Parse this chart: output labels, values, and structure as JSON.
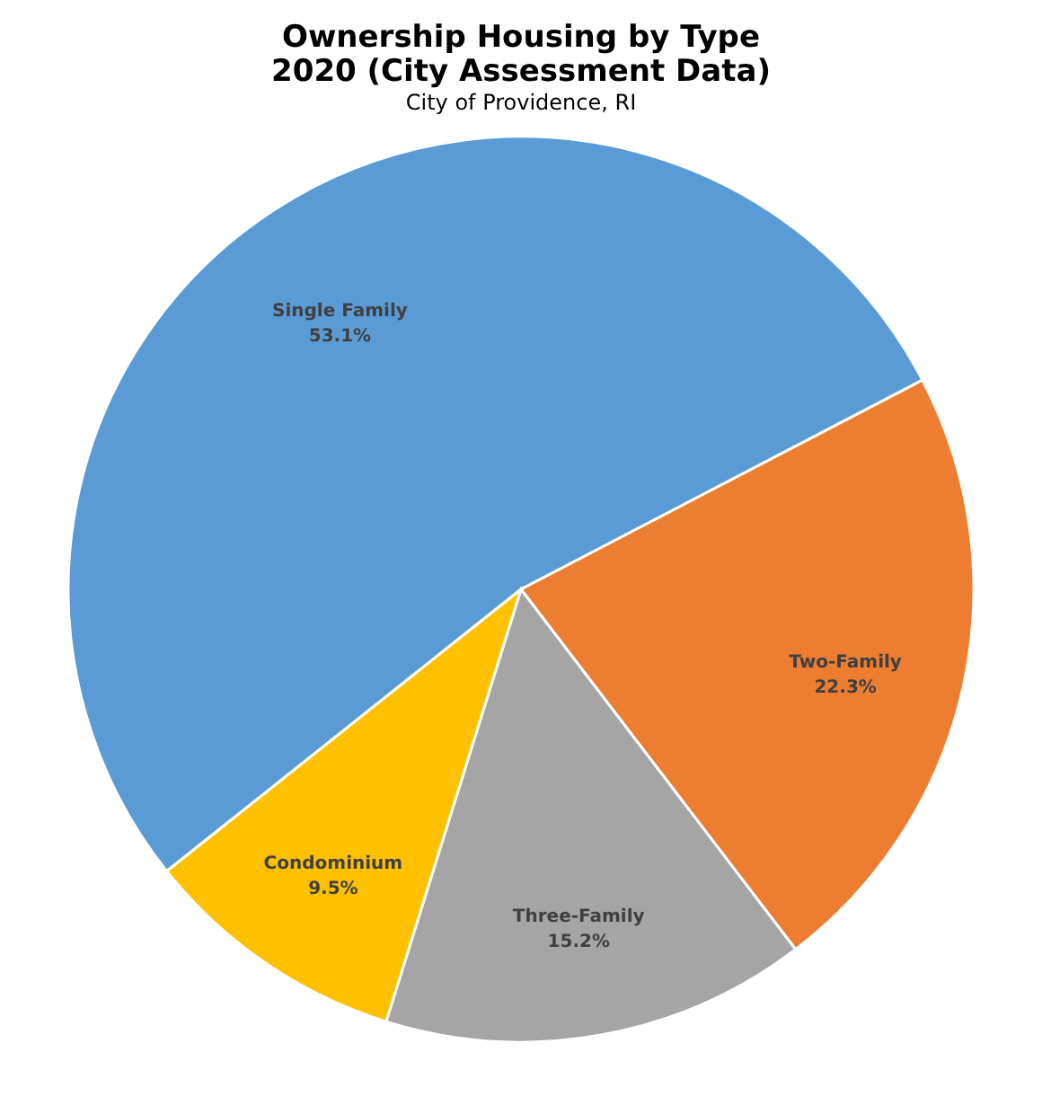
{
  "chart_data": {
    "type": "pie",
    "title": [
      "Ownership Housing by Type",
      "2020 (City Assessment Data)"
    ],
    "subtitle": "City of Providence, RI",
    "categories": [
      "Single Family",
      "Two-Family",
      "Three-Family",
      "Condominium"
    ],
    "values": [
      53.1,
      22.3,
      15.2,
      9.5
    ],
    "value_labels": [
      "53.1%",
      "22.3%",
      "15.2%",
      "9.5%"
    ],
    "colors": [
      "#5b9bd5",
      "#ed7d31",
      "#a5a5a5",
      "#ffc000"
    ],
    "legend": false
  }
}
